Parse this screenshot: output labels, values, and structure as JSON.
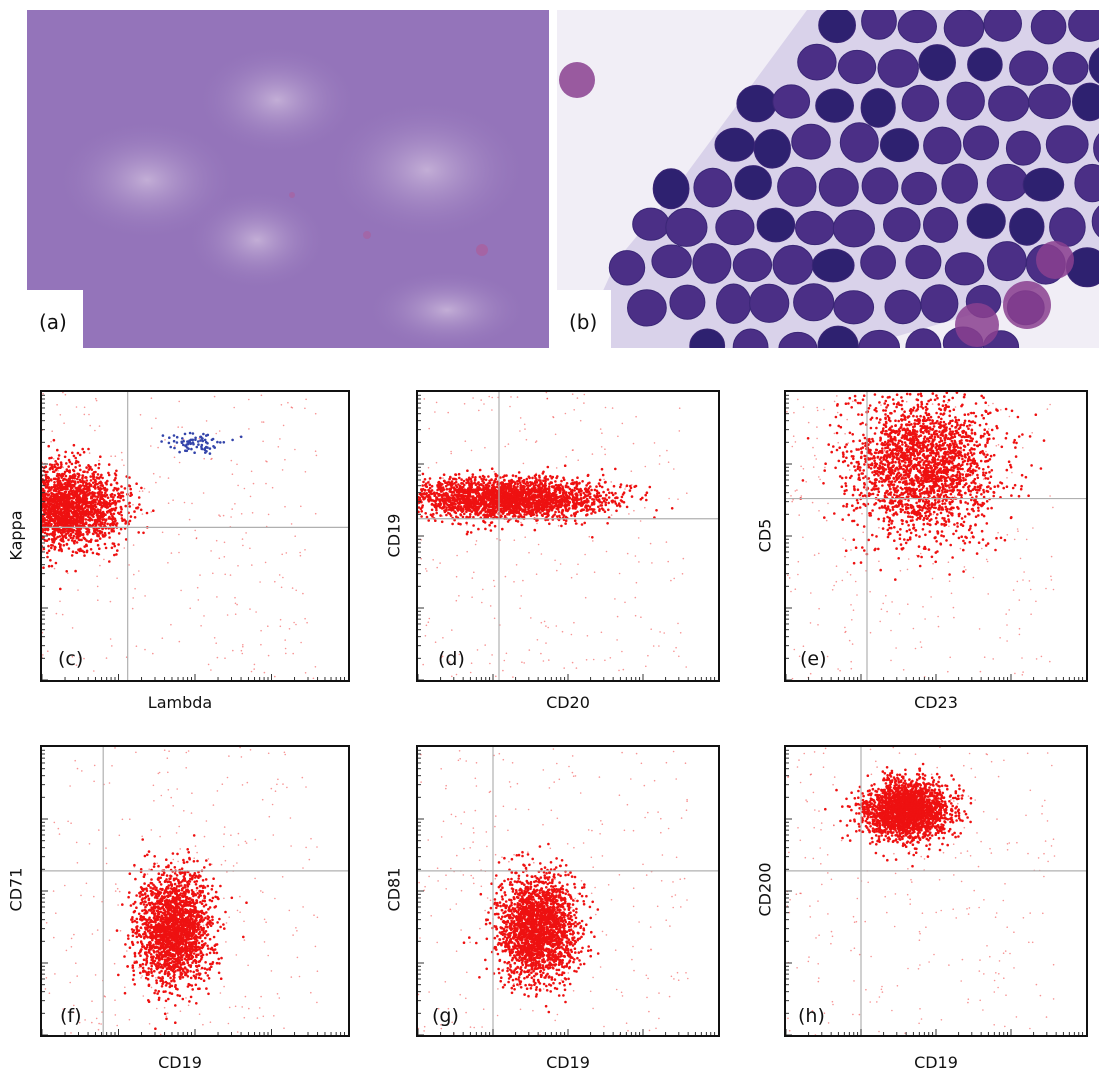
{
  "colors": {
    "dot": "#ee1111",
    "blue_events": "#3344aa",
    "quadrant": "#b0b0b0",
    "frame": "#111111",
    "smear_pale": "#9c78bf",
    "smear_cell": "#4b2f86",
    "smear_bg": "#f1eef6"
  },
  "micrographs": [
    {
      "label": "(a)"
    },
    {
      "label": "(b)"
    }
  ],
  "chart_data": [
    {
      "type": "scatter",
      "panel": "(c)",
      "xlabel": "Lambda",
      "ylabel": "Kappa",
      "x_scale": "log",
      "y_scale": "log",
      "grid": false,
      "quadrant_gates": true,
      "populations": [
        {
          "name": "",
          "color": "#ee1111",
          "x_center": 0.08,
          "y_center": 0.6,
          "x_spread": 0.09,
          "y_spread": 0.07,
          "share": 0.85
        },
        {
          "name": "",
          "color": "#3344aa",
          "x_center": 0.5,
          "y_center": 0.82,
          "x_spread": 0.05,
          "y_spread": 0.02,
          "share": 0.03
        }
      ]
    },
    {
      "type": "scatter",
      "panel": "(d)",
      "xlabel": "CD20",
      "ylabel": "CD19",
      "x_scale": "log",
      "y_scale": "log",
      "grid": false,
      "quadrant_gates": true,
      "populations": [
        {
          "name": "",
          "color": "#ee1111",
          "x_center": 0.3,
          "y_center": 0.63,
          "x_spread": 0.16,
          "y_spread": 0.035,
          "share": 0.95
        }
      ]
    },
    {
      "type": "scatter",
      "panel": "(e)",
      "xlabel": "CD23",
      "ylabel": "CD5",
      "x_scale": "log",
      "y_scale": "log",
      "grid": false,
      "quadrant_gates": true,
      "populations": [
        {
          "name": "",
          "color": "#ee1111",
          "x_center": 0.45,
          "y_center": 0.74,
          "x_spread": 0.12,
          "y_spread": 0.12,
          "share": 0.92
        }
      ]
    },
    {
      "type": "scatter",
      "panel": "(f)",
      "xlabel": "CD19",
      "ylabel": "CD71",
      "x_scale": "log",
      "y_scale": "log",
      "grid": false,
      "quadrant_gates": true,
      "populations": [
        {
          "name": "",
          "color": "#ee1111",
          "x_center": 0.43,
          "y_center": 0.37,
          "x_spread": 0.06,
          "y_spread": 0.1,
          "share": 0.8
        }
      ]
    },
    {
      "type": "scatter",
      "panel": "(g)",
      "xlabel": "CD19",
      "ylabel": "CD81",
      "x_scale": "log",
      "y_scale": "log",
      "grid": false,
      "quadrant_gates": true,
      "populations": [
        {
          "name": "",
          "color": "#ee1111",
          "x_center": 0.4,
          "y_center": 0.37,
          "x_spread": 0.065,
          "y_spread": 0.09,
          "share": 0.85
        }
      ]
    },
    {
      "type": "scatter",
      "panel": "(h)",
      "xlabel": "CD19",
      "ylabel": "CD200",
      "x_scale": "log",
      "y_scale": "log",
      "grid": false,
      "quadrant_gates": true,
      "populations": [
        {
          "name": "",
          "color": "#ee1111",
          "x_center": 0.4,
          "y_center": 0.78,
          "x_spread": 0.07,
          "y_spread": 0.05,
          "share": 0.85
        }
      ]
    }
  ]
}
